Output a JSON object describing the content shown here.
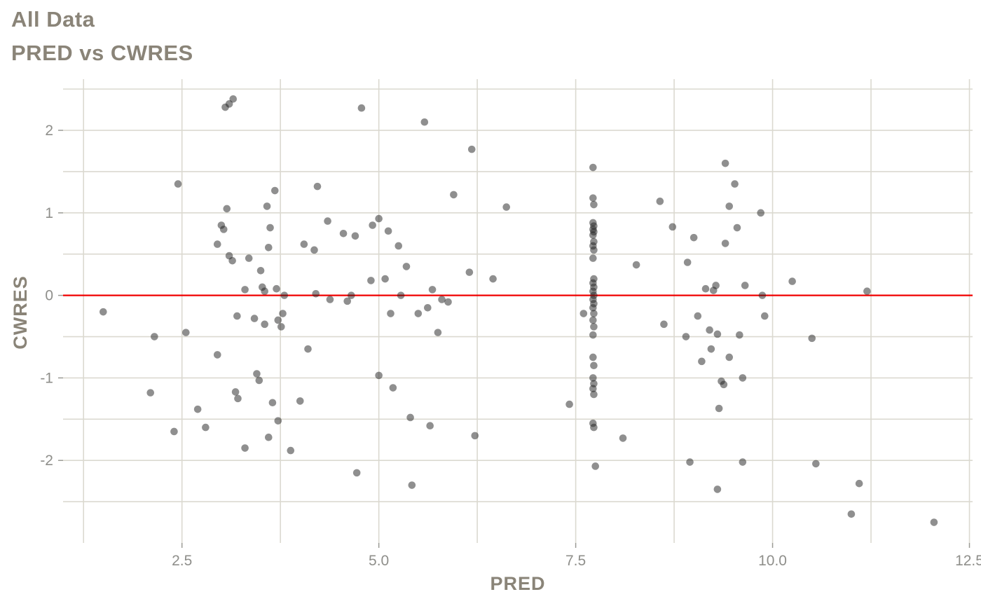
{
  "header": {
    "title": "All Data",
    "subtitle": "PRED vs CWRES"
  },
  "chart_data": {
    "type": "scatter",
    "title": "All Data",
    "subtitle": "PRED vs CWRES",
    "xlabel": "PRED",
    "ylabel": "CWRES",
    "xlim": [
      0.99,
      12.54
    ],
    "ylim": [
      -3.0,
      2.62
    ],
    "x_ticks": [
      2.5,
      5.0,
      7.5,
      10.0,
      12.5
    ],
    "x_tick_labels": [
      "2.5",
      "5.0",
      "7.5",
      "10.0",
      "12.5"
    ],
    "x_minor_gridlines": [
      1.25,
      3.75,
      6.25,
      8.75,
      11.25
    ],
    "y_ticks": [
      -2,
      -1,
      0,
      1,
      2
    ],
    "y_tick_labels": [
      "-2",
      "-1",
      "0",
      "1",
      "2"
    ],
    "y_minor_gridlines": [
      -2.5,
      -1.5,
      -0.5,
      0.5,
      1.5,
      2.5
    ],
    "grid_on": true,
    "grid_color": "#dbd9d0",
    "background_color": "#ffffff",
    "tick_label_color": "#8f8f8b",
    "point_color": "#1f1f1f",
    "point_opacity": 0.5,
    "reference_line": {
      "y": 0,
      "color": "#f00000"
    },
    "legend": "none",
    "points": [
      [
        1.5,
        -0.2
      ],
      [
        2.15,
        -0.5
      ],
      [
        2.1,
        -1.18
      ],
      [
        2.45,
        1.35
      ],
      [
        2.4,
        -1.65
      ],
      [
        2.55,
        -0.45
      ],
      [
        2.7,
        -1.38
      ],
      [
        2.8,
        -1.6
      ],
      [
        2.95,
        -0.72
      ],
      [
        2.95,
        0.62
      ],
      [
        3.0,
        0.85
      ],
      [
        3.03,
        0.8
      ],
      [
        3.05,
        2.28
      ],
      [
        3.1,
        2.32
      ],
      [
        3.15,
        2.38
      ],
      [
        3.07,
        1.05
      ],
      [
        3.1,
        0.48
      ],
      [
        3.14,
        0.42
      ],
      [
        3.2,
        -0.25
      ],
      [
        3.18,
        -1.17
      ],
      [
        3.21,
        -1.25
      ],
      [
        3.3,
        0.07
      ],
      [
        3.3,
        -1.85
      ],
      [
        3.35,
        0.45
      ],
      [
        3.42,
        -0.28
      ],
      [
        3.45,
        -0.95
      ],
      [
        3.48,
        -1.03
      ],
      [
        3.5,
        0.3
      ],
      [
        3.52,
        0.1
      ],
      [
        3.55,
        0.05
      ],
      [
        3.55,
        -0.35
      ],
      [
        3.58,
        1.08
      ],
      [
        3.6,
        0.58
      ],
      [
        3.62,
        0.82
      ],
      [
        3.6,
        -1.72
      ],
      [
        3.65,
        -1.3
      ],
      [
        3.68,
        1.27
      ],
      [
        3.7,
        0.08
      ],
      [
        3.72,
        -0.3
      ],
      [
        3.72,
        -1.52
      ],
      [
        3.76,
        -0.38
      ],
      [
        3.78,
        -0.22
      ],
      [
        3.8,
        0.0
      ],
      [
        3.88,
        -1.88
      ],
      [
        4.0,
        -1.28
      ],
      [
        4.05,
        0.62
      ],
      [
        4.1,
        -0.65
      ],
      [
        4.18,
        0.55
      ],
      [
        4.2,
        0.02
      ],
      [
        4.22,
        1.32
      ],
      [
        4.35,
        0.9
      ],
      [
        4.38,
        -0.05
      ],
      [
        4.55,
        0.75
      ],
      [
        4.6,
        -0.07
      ],
      [
        4.65,
        0.0
      ],
      [
        4.7,
        0.72
      ],
      [
        4.72,
        -2.15
      ],
      [
        4.78,
        2.27
      ],
      [
        4.9,
        0.18
      ],
      [
        4.92,
        0.85
      ],
      [
        5.0,
        0.93
      ],
      [
        5.0,
        -0.97
      ],
      [
        5.08,
        0.2
      ],
      [
        5.12,
        0.78
      ],
      [
        5.15,
        -0.22
      ],
      [
        5.18,
        -1.12
      ],
      [
        5.25,
        0.6
      ],
      [
        5.28,
        0.0
      ],
      [
        5.35,
        0.35
      ],
      [
        5.4,
        -1.48
      ],
      [
        5.42,
        -2.3
      ],
      [
        5.5,
        -0.22
      ],
      [
        5.58,
        2.1
      ],
      [
        5.62,
        -0.15
      ],
      [
        5.65,
        -1.58
      ],
      [
        5.68,
        0.07
      ],
      [
        5.75,
        -0.45
      ],
      [
        5.8,
        -0.05
      ],
      [
        5.88,
        -0.08
      ],
      [
        5.95,
        1.22
      ],
      [
        6.15,
        0.28
      ],
      [
        6.18,
        1.77
      ],
      [
        6.22,
        -1.7
      ],
      [
        6.45,
        0.2
      ],
      [
        6.62,
        1.07
      ],
      [
        7.42,
        -1.32
      ],
      [
        7.6,
        -0.22
      ],
      [
        7.72,
        1.55
      ],
      [
        7.72,
        1.18
      ],
      [
        7.73,
        1.1
      ],
      [
        7.72,
        0.88
      ],
      [
        7.73,
        0.84
      ],
      [
        7.72,
        0.8
      ],
      [
        7.73,
        0.77
      ],
      [
        7.72,
        0.73
      ],
      [
        7.73,
        0.65
      ],
      [
        7.72,
        0.6
      ],
      [
        7.73,
        0.55
      ],
      [
        7.72,
        0.45
      ],
      [
        7.73,
        0.2
      ],
      [
        7.72,
        0.15
      ],
      [
        7.73,
        0.1
      ],
      [
        7.72,
        0.05
      ],
      [
        7.73,
        0.0
      ],
      [
        7.72,
        -0.05
      ],
      [
        7.73,
        -0.1
      ],
      [
        7.72,
        -0.15
      ],
      [
        7.73,
        -0.22
      ],
      [
        7.72,
        -0.3
      ],
      [
        7.73,
        -0.38
      ],
      [
        7.72,
        -0.48
      ],
      [
        7.72,
        -0.75
      ],
      [
        7.73,
        -0.85
      ],
      [
        7.72,
        -1.0
      ],
      [
        7.73,
        -1.07
      ],
      [
        7.72,
        -1.13
      ],
      [
        7.73,
        -1.2
      ],
      [
        7.72,
        -1.55
      ],
      [
        7.73,
        -1.6
      ],
      [
        7.75,
        -2.07
      ],
      [
        8.1,
        -1.73
      ],
      [
        8.27,
        0.37
      ],
      [
        8.57,
        1.14
      ],
      [
        8.62,
        -0.35
      ],
      [
        8.73,
        0.83
      ],
      [
        8.9,
        -0.5
      ],
      [
        8.92,
        0.4
      ],
      [
        8.95,
        -2.02
      ],
      [
        9.0,
        0.7
      ],
      [
        9.05,
        -0.25
      ],
      [
        9.1,
        -0.8
      ],
      [
        9.15,
        0.08
      ],
      [
        9.2,
        -0.42
      ],
      [
        9.22,
        -0.65
      ],
      [
        9.25,
        0.06
      ],
      [
        9.28,
        0.12
      ],
      [
        9.3,
        -0.47
      ],
      [
        9.3,
        -2.35
      ],
      [
        9.32,
        -1.37
      ],
      [
        9.35,
        -1.04
      ],
      [
        9.38,
        -1.08
      ],
      [
        9.4,
        0.63
      ],
      [
        9.4,
        1.6
      ],
      [
        9.45,
        1.08
      ],
      [
        9.45,
        -0.75
      ],
      [
        9.52,
        1.35
      ],
      [
        9.55,
        0.82
      ],
      [
        9.58,
        -0.48
      ],
      [
        9.62,
        -1.0
      ],
      [
        9.62,
        -2.02
      ],
      [
        9.65,
        0.12
      ],
      [
        9.85,
        1.0
      ],
      [
        9.87,
        0.0
      ],
      [
        9.9,
        -0.25
      ],
      [
        10.25,
        0.17
      ],
      [
        10.5,
        -0.52
      ],
      [
        10.55,
        -2.04
      ],
      [
        11.0,
        -2.65
      ],
      [
        11.1,
        -2.28
      ],
      [
        11.2,
        0.05
      ],
      [
        12.05,
        -2.75
      ]
    ]
  }
}
